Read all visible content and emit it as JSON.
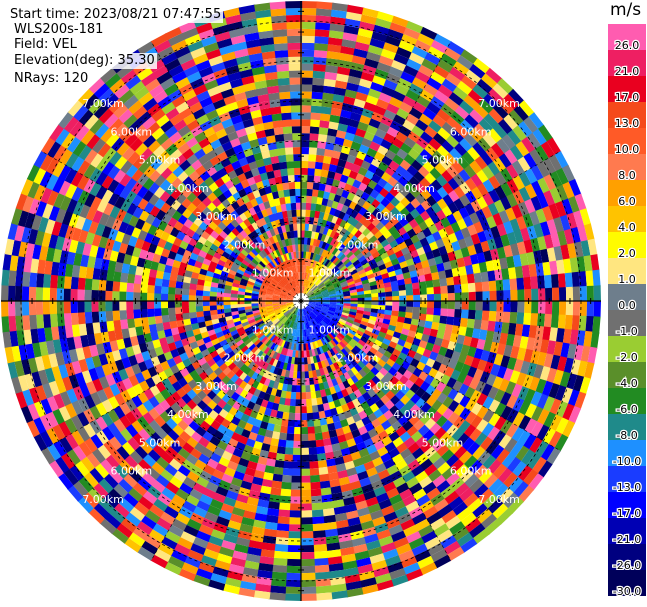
{
  "meta": {
    "start_time": "Start time: 2023/08/21 07:47:55",
    "radar": "WLS200s-181",
    "field": "Field: VEL",
    "elevation": "Elevation(deg): 35.30",
    "nrays": "NRays: 120"
  },
  "colorbar": {
    "unit": "m/s",
    "levels": [
      {
        "label": "26.0",
        "color": "#ff5cb0"
      },
      {
        "label": "21.0",
        "color": "#ee1f62"
      },
      {
        "label": "17.0",
        "color": "#e9001f"
      },
      {
        "label": "13.0",
        "color": "#f54a1b"
      },
      {
        "label": "10.0",
        "color": "#ff5a27"
      },
      {
        "label": "8.0",
        "color": "#ff7a4f"
      },
      {
        "label": "6.0",
        "color": "#ffa000"
      },
      {
        "label": "4.0",
        "color": "#ffc300"
      },
      {
        "label": "2.0",
        "color": "#fffb00"
      },
      {
        "label": "1.0",
        "color": "#ffe680"
      },
      {
        "label": "0.0",
        "color": "#6e7e8c"
      },
      {
        "label": "-1.0",
        "color": "#707070"
      },
      {
        "label": "-2.0",
        "color": "#9acd32"
      },
      {
        "label": "-4.0",
        "color": "#5a8f2a"
      },
      {
        "label": "-6.0",
        "color": "#228b22"
      },
      {
        "label": "-8.0",
        "color": "#1f8a8a"
      },
      {
        "label": "-10.0",
        "color": "#1e90ff"
      },
      {
        "label": "-13.0",
        "color": "#1a3cff"
      },
      {
        "label": "-17.0",
        "color": "#0000ff"
      },
      {
        "label": "-21.0",
        "color": "#0000b4"
      },
      {
        "label": "-26.0",
        "color": "#000080"
      },
      {
        "label": "-30.0",
        "color": "#00005a"
      }
    ]
  },
  "chart_data": {
    "type": "heatmap",
    "projection": "polar-ppi",
    "field": "VEL",
    "nrays": 120,
    "elevation_deg": 35.3,
    "rings": [
      {
        "label": "1.00km"
      },
      {
        "label": "2.00km"
      },
      {
        "label": "3.00km"
      },
      {
        "label": "4.00km"
      },
      {
        "label": "5.00km"
      },
      {
        "label": "6.00km"
      },
      {
        "label": "7.00km"
      }
    ],
    "legend_placement": "right"
  }
}
